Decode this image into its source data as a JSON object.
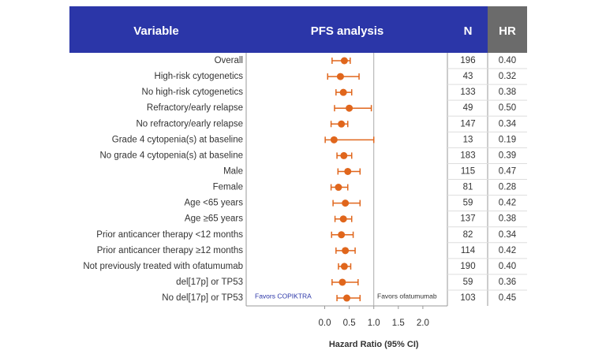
{
  "chart_data": {
    "type": "forest",
    "headers": [
      "Variable",
      "PFS analysis",
      "N",
      "HR"
    ],
    "categories": [
      "Overall",
      "High-risk cytogenetics",
      "No high-risk cytogenetics",
      "Refractory/early relapse",
      "No refractory/early relapse",
      "Grade 4 cytopenia(s) at baseline",
      "No grade 4 cytopenia(s) at baseline",
      "Male",
      "Female",
      "Age <65 years",
      "Age ≥65 years",
      "Prior anticancer therapy <12 months",
      "Prior anticancer therapy ≥12 months",
      "Not previously treated with ofatumumab",
      "del[17p] or TP53",
      "No del[17p] or TP53"
    ],
    "values": [
      0.4,
      0.32,
      0.38,
      0.5,
      0.34,
      0.19,
      0.39,
      0.47,
      0.28,
      0.42,
      0.38,
      0.34,
      0.42,
      0.4,
      0.36,
      0.45
    ],
    "value_labels": [
      "0.40",
      "0.32",
      "0.38",
      "0.50",
      "0.34",
      "0.19",
      "0.39",
      "0.47",
      "0.28",
      "0.42",
      "0.38",
      "0.34",
      "0.42",
      "0.40",
      "0.36",
      "0.45"
    ],
    "ci_low": [
      0.15,
      0.06,
      0.23,
      0.2,
      0.13,
      0.01,
      0.25,
      0.27,
      0.13,
      0.17,
      0.21,
      0.14,
      0.23,
      0.28,
      0.15,
      0.25
    ],
    "ci_high": [
      0.52,
      0.7,
      0.55,
      0.95,
      0.47,
      1.0,
      0.55,
      0.72,
      0.47,
      0.72,
      0.55,
      0.58,
      0.62,
      0.53,
      0.68,
      0.72
    ],
    "n": [
      196,
      43,
      133,
      49,
      147,
      13,
      183,
      115,
      81,
      59,
      137,
      82,
      114,
      190,
      59,
      103
    ],
    "reference_line": 1,
    "annotations": [
      "Favors COPIKTRA",
      "Favors ofatumumab"
    ],
    "x_label": "Hazard Ratio (95% CI)",
    "xlim": [
      -1.6,
      2.5
    ],
    "xticks": [
      {
        "value": 0,
        "label": "0.0"
      },
      0.5,
      {
        "value": 1,
        "label": "1.0"
      },
      1.5,
      {
        "value": 2,
        "label": "2.0"
      }
    ],
    "color": "#e0661c",
    "header_color": "#2b36a8",
    "hr_header_color": "#6b6b6b"
  }
}
